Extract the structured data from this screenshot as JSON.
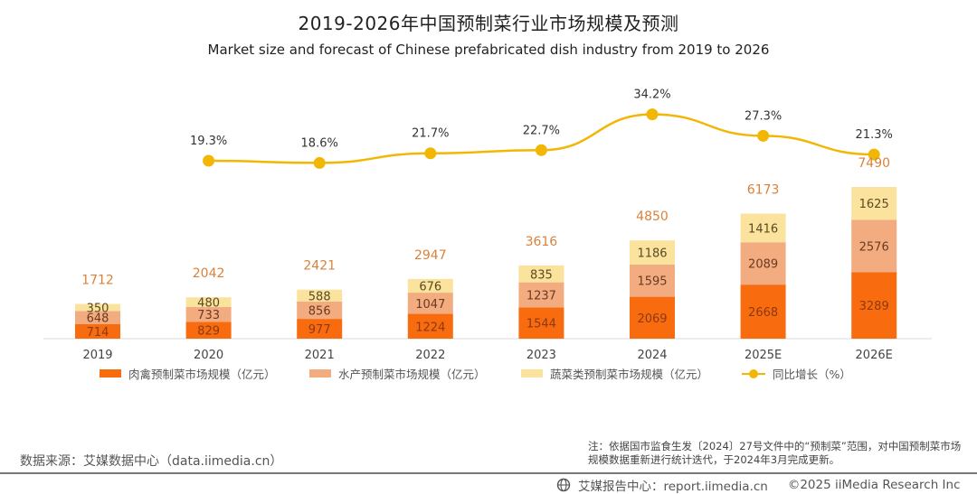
{
  "header": {
    "title": "2019-2026年中国预制菜行业市场规模及预测",
    "subtitle": "Market size and forecast of Chinese prefabricated dish industry from 2019 to 2026"
  },
  "chart_data": {
    "type": "bar",
    "stacked": true,
    "title": "2019-2026年中国预制菜行业市场规模及预测",
    "subtitle": "Market size and forecast of Chinese prefabricated dish industry from 2019 to 2026",
    "xlabel": "",
    "ylabel": "",
    "categories": [
      "2019",
      "2020",
      "2021",
      "2022",
      "2023",
      "2024",
      "2025E",
      "2026E"
    ],
    "series": [
      {
        "name": "肉禽预制菜市场规模（亿元）",
        "kind": "bar",
        "color": "#F96B0F",
        "values": [
          714,
          829,
          977,
          1224,
          1544,
          2069,
          2668,
          3289
        ]
      },
      {
        "name": "水产预制菜市场规模（亿元）",
        "kind": "bar",
        "color": "#F3AC80",
        "values": [
          648,
          733,
          856,
          1047,
          1237,
          1595,
          2089,
          2576
        ]
      },
      {
        "name": "蔬菜类预制菜市场规模（亿元）",
        "kind": "bar",
        "color": "#FBE39E",
        "values": [
          350,
          480,
          588,
          676,
          835,
          1186,
          1416,
          1625
        ]
      },
      {
        "name": "同比增长（%）",
        "kind": "line",
        "color": "#F2B705",
        "values": [
          null,
          19.3,
          18.6,
          21.7,
          22.7,
          34.2,
          27.3,
          21.3
        ],
        "labels": [
          "",
          "19.3%",
          "18.6%",
          "21.7%",
          "22.7%",
          "34.2%",
          "27.3%",
          "21.3%"
        ]
      }
    ],
    "totals": [
      1712,
      2042,
      2421,
      2947,
      3616,
      4850,
      6173,
      7490
    ],
    "total_label_color": "#D9823B",
    "legend_position": "bottom",
    "grid": false
  },
  "legend": [
    {
      "label": "肉禽预制菜市场规模（亿元）",
      "color": "#F96B0F"
    },
    {
      "label": "水产预制菜市场规模（亿元）",
      "color": "#F3AC80"
    },
    {
      "label": "蔬菜类预制菜市场规模（亿元）",
      "color": "#FBE39E"
    },
    {
      "label": "同比增长（%）",
      "color": "#F2B705"
    }
  ],
  "source": "数据来源：艾媒数据中心（data.iimedia.cn）",
  "note": "注：依据国市监食生发〔2024〕27号文件中的“预制菜”范围，对中国预制菜市场规模数据重新进行统计迭代，于2024年3月完成更新。",
  "footer": {
    "report": "艾媒报告中心：report.iimedia.cn",
    "copyright": "©2025 iiMedia Research Inc"
  }
}
